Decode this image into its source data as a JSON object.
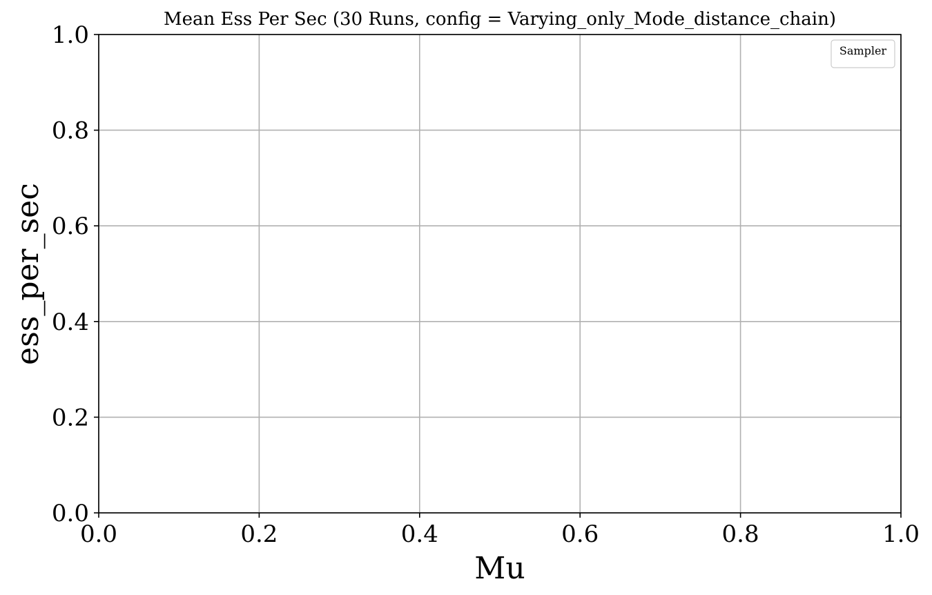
{
  "chart_data": {
    "type": "line",
    "title": "Mean Ess Per Sec (30 Runs, config = Varying_only_Mode_distance_chain)",
    "xlabel": "Mu",
    "ylabel": "ess_per_sec",
    "xlim": [
      0.0,
      1.0
    ],
    "ylim": [
      0.0,
      1.0
    ],
    "x_ticks": [
      0.0,
      0.2,
      0.4,
      0.6,
      0.8,
      1.0
    ],
    "y_ticks": [
      0.0,
      0.2,
      0.4,
      0.6,
      0.8,
      1.0
    ],
    "x_tick_labels": [
      "0.0",
      "0.2",
      "0.4",
      "0.6",
      "0.8",
      "1.0"
    ],
    "y_tick_labels": [
      "0.0",
      "0.2",
      "0.4",
      "0.6",
      "0.8",
      "1.0"
    ],
    "grid": true,
    "legend": {
      "title": "Sampler",
      "placement": "top-right",
      "entries": []
    },
    "series": []
  },
  "colors": {
    "grid": "#b0b0b0",
    "axes": "#000000",
    "legend_border": "#cccccc",
    "background": "#ffffff"
  }
}
